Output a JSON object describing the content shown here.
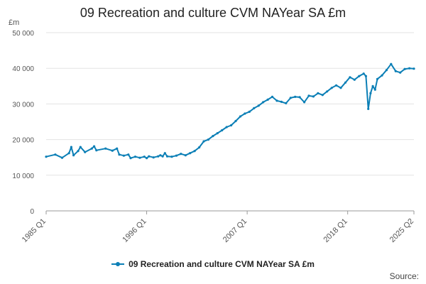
{
  "chart_data": {
    "type": "line",
    "title": "09 Recreation and culture CVM NAYear SA £m",
    "unit_label": "£m",
    "x_tick_labels": [
      "1985 Q1",
      "1996 Q1",
      "2007 Q1",
      "2018 Q1",
      "2025 Q2"
    ],
    "y_tick_labels": [
      "0",
      "10 000",
      "20 000",
      "30 000",
      "40 000",
      "50 000"
    ],
    "y_ticks": [
      0,
      10000,
      20000,
      30000,
      40000,
      50000
    ],
    "ylim": [
      0,
      50000
    ],
    "grid": true,
    "legend_position": "bottom",
    "source_label": "Source:",
    "series": [
      {
        "name": "09 Recreation and culture CVM NAYear SA £m",
        "color": "#0b7fb6",
        "points": [
          [
            "1985 Q1",
            15200
          ],
          [
            "1986 Q1",
            15800
          ],
          [
            "1986 Q4",
            14900
          ],
          [
            "1987 Q3",
            16200
          ],
          [
            "1987 Q4",
            17900
          ],
          [
            "1988 Q1",
            15600
          ],
          [
            "1988 Q3",
            16800
          ],
          [
            "1988 Q4",
            17900
          ],
          [
            "1989 Q2",
            16500
          ],
          [
            "1990 Q1",
            17500
          ],
          [
            "1990 Q2",
            18100
          ],
          [
            "1990 Q3",
            17000
          ],
          [
            "1991 Q3",
            17500
          ],
          [
            "1992 Q2",
            16900
          ],
          [
            "1992 Q4",
            17500
          ],
          [
            "1993 Q1",
            15800
          ],
          [
            "1993 Q3",
            15500
          ],
          [
            "1994 Q1",
            15800
          ],
          [
            "1994 Q2",
            14800
          ],
          [
            "1994 Q4",
            15200
          ],
          [
            "1995 Q2",
            14900
          ],
          [
            "1995 Q4",
            15200
          ],
          [
            "1996 Q1",
            14800
          ],
          [
            "1996 Q2",
            15300
          ],
          [
            "1996 Q4",
            15000
          ],
          [
            "1997 Q2",
            15300
          ],
          [
            "1997 Q3",
            15600
          ],
          [
            "1997 Q4",
            15300
          ],
          [
            "1998 Q1",
            16200
          ],
          [
            "1998 Q2",
            15300
          ],
          [
            "1998 Q4",
            15200
          ],
          [
            "1999 Q2",
            15500
          ],
          [
            "1999 Q4",
            16000
          ],
          [
            "2000 Q2",
            15600
          ],
          [
            "2000 Q4",
            16200
          ],
          [
            "2001 Q2",
            16800
          ],
          [
            "2001 Q4",
            17800
          ],
          [
            "2002 Q2",
            19500
          ],
          [
            "2002 Q4",
            20000
          ],
          [
            "2003 Q2",
            21000
          ],
          [
            "2003 Q4",
            21800
          ],
          [
            "2004 Q2",
            22600
          ],
          [
            "2004 Q4",
            23500
          ],
          [
            "2005 Q2",
            24000
          ],
          [
            "2005 Q4",
            25200
          ],
          [
            "2006 Q2",
            26500
          ],
          [
            "2006 Q4",
            27300
          ],
          [
            "2007 Q2",
            27800
          ],
          [
            "2007 Q4",
            28800
          ],
          [
            "2008 Q2",
            29500
          ],
          [
            "2008 Q4",
            30500
          ],
          [
            "2009 Q2",
            31200
          ],
          [
            "2009 Q4",
            32000
          ],
          [
            "2010 Q2",
            30900
          ],
          [
            "2010 Q4",
            30600
          ],
          [
            "2011 Q2",
            30200
          ],
          [
            "2011 Q4",
            31700
          ],
          [
            "2012 Q2",
            32000
          ],
          [
            "2012 Q4",
            31900
          ],
          [
            "2013 Q2",
            30500
          ],
          [
            "2013 Q4",
            32300
          ],
          [
            "2014 Q2",
            32100
          ],
          [
            "2014 Q4",
            33000
          ],
          [
            "2015 Q2",
            32500
          ],
          [
            "2015 Q4",
            33500
          ],
          [
            "2016 Q2",
            34500
          ],
          [
            "2016 Q4",
            35200
          ],
          [
            "2017 Q2",
            34500
          ],
          [
            "2017 Q4",
            36000
          ],
          [
            "2018 Q2",
            37500
          ],
          [
            "2018 Q4",
            36800
          ],
          [
            "2019 Q2",
            37800
          ],
          [
            "2019 Q4",
            38500
          ],
          [
            "2020 Q1",
            37800
          ],
          [
            "2020 Q2",
            28600
          ],
          [
            "2020 Q3",
            33000
          ],
          [
            "2020 Q4",
            35000
          ],
          [
            "2021 Q1",
            34000
          ],
          [
            "2021 Q2",
            37000
          ],
          [
            "2021 Q4",
            38000
          ],
          [
            "2022 Q2",
            39500
          ],
          [
            "2022 Q4",
            41200
          ],
          [
            "2023 Q2",
            39200
          ],
          [
            "2023 Q4",
            38800
          ],
          [
            "2024 Q2",
            39800
          ],
          [
            "2024 Q4",
            40000
          ],
          [
            "2025 Q2",
            39900
          ]
        ]
      }
    ]
  }
}
